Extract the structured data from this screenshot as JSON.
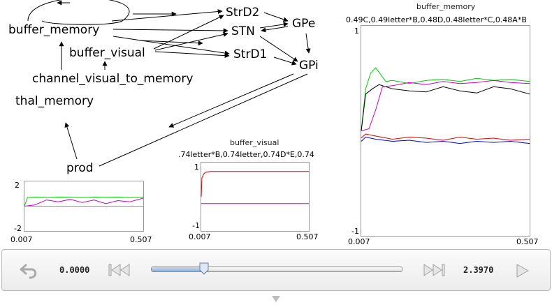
{
  "network": {
    "nodes": [
      {
        "id": "buffer_memory",
        "label": "buffer_memory"
      },
      {
        "id": "buffer_visual",
        "label": "buffer_visual"
      },
      {
        "id": "channel",
        "label": "channel_visual_to_memory"
      },
      {
        "id": "thal_memory",
        "label": "thal_memory"
      },
      {
        "id": "prod",
        "label": "prod"
      },
      {
        "id": "StrD2",
        "label": "StrD2"
      },
      {
        "id": "STN",
        "label": "STN"
      },
      {
        "id": "StrD1",
        "label": "StrD1"
      },
      {
        "id": "GPe",
        "label": "GPe"
      },
      {
        "id": "GPi",
        "label": "GPi"
      }
    ]
  },
  "plots": {
    "small": {
      "y_top": "2",
      "y_bottom": "-2",
      "x_start": "0.007",
      "x_end": "0.507"
    },
    "buffer_visual": {
      "title": "buffer_visual",
      "subtitle": ".74letter*B,0.74letter,0.74D*E,0.74",
      "y_top": "1",
      "y_bottom": "-1",
      "x_start": "0.007",
      "x_end": "0.507"
    },
    "buffer_memory": {
      "title": "buffer_memory",
      "subtitle": "0.49C,0.49letter*B,0.48D,0.48letter*C,0.48A*B",
      "y_top": "1",
      "y_bottom": "-1",
      "x_start": "0.007",
      "x_end": "0.507"
    }
  },
  "chart_data": [
    {
      "type": "line",
      "x_range": [
        0.007,
        0.507
      ],
      "ylim": [
        -2,
        2
      ],
      "series": [
        {
          "color": "#00cc00",
          "x": [
            0.007,
            0.02,
            0.06,
            0.1,
            0.15,
            0.2,
            0.25,
            0.3,
            0.35,
            0.4,
            0.45,
            0.507
          ],
          "y": [
            0.0,
            0.7,
            0.75,
            0.7,
            0.74,
            0.72,
            0.7,
            0.73,
            0.72,
            0.74,
            0.7,
            0.72
          ]
        },
        {
          "color": "#cc00cc",
          "x": [
            0.007,
            0.05,
            0.1,
            0.15,
            0.2,
            0.25,
            0.3,
            0.35,
            0.4,
            0.45,
            0.507
          ],
          "y": [
            0.0,
            0.1,
            0.5,
            0.35,
            0.55,
            0.3,
            0.5,
            0.2,
            0.45,
            0.35,
            0.65
          ]
        },
        {
          "color": "#00cccc",
          "x": [
            0.007,
            0.507
          ],
          "y": [
            0.0,
            0.0
          ]
        }
      ]
    },
    {
      "type": "line",
      "title": "buffer_visual",
      "x_range": [
        0.007,
        0.507
      ],
      "ylim": [
        -1,
        1
      ],
      "series": [
        {
          "color": "#dd0000",
          "x": [
            0.007,
            0.01,
            0.02,
            0.03,
            0.05,
            0.1,
            0.507
          ],
          "y": [
            0.0,
            0.55,
            0.68,
            0.72,
            0.74,
            0.74,
            0.74
          ]
        },
        {
          "color": "#cc00cc",
          "x": [
            0.007,
            0.507
          ],
          "y": [
            -0.2,
            -0.2
          ]
        }
      ]
    },
    {
      "type": "line",
      "title": "buffer_memory",
      "x_range": [
        0.007,
        0.507
      ],
      "ylim": [
        -1,
        1
      ],
      "series": [
        {
          "color": "#00cc00",
          "x": [
            0.007,
            0.02,
            0.035,
            0.05,
            0.08,
            0.1,
            0.15,
            0.2,
            0.25,
            0.3,
            0.35,
            0.4,
            0.45,
            0.507
          ],
          "y": [
            0.0,
            0.4,
            0.55,
            0.6,
            0.47,
            0.48,
            0.45,
            0.48,
            0.49,
            0.47,
            0.5,
            0.48,
            0.49,
            0.47
          ]
        },
        {
          "color": "#000000",
          "x": [
            0.007,
            0.02,
            0.04,
            0.06,
            0.1,
            0.15,
            0.2,
            0.25,
            0.3,
            0.35,
            0.4,
            0.45,
            0.507
          ],
          "y": [
            0.0,
            0.35,
            0.4,
            0.44,
            0.4,
            0.38,
            0.37,
            0.42,
            0.38,
            0.36,
            0.42,
            0.4,
            0.35
          ]
        },
        {
          "color": "#cc00cc",
          "x": [
            0.007,
            0.03,
            0.05,
            0.07,
            0.1,
            0.15,
            0.2,
            0.25,
            0.3,
            0.35,
            0.4,
            0.45,
            0.507
          ],
          "y": [
            0.0,
            0.02,
            0.2,
            0.42,
            0.43,
            0.46,
            0.44,
            0.47,
            0.45,
            0.46,
            0.48,
            0.46,
            0.45
          ]
        },
        {
          "color": "#dd0000",
          "x": [
            0.007,
            0.02,
            0.05,
            0.1,
            0.15,
            0.2,
            0.25,
            0.3,
            0.35,
            0.4,
            0.45,
            0.507
          ],
          "y": [
            -0.07,
            -0.03,
            -0.05,
            -0.08,
            -0.06,
            -0.07,
            -0.09,
            -0.06,
            -0.08,
            -0.07,
            -0.09,
            -0.08
          ]
        },
        {
          "color": "#0000dd",
          "x": [
            0.007,
            0.02,
            0.05,
            0.1,
            0.15,
            0.2,
            0.25,
            0.3,
            0.35,
            0.4,
            0.45,
            0.507
          ],
          "y": [
            -0.1,
            -0.06,
            -0.08,
            -0.1,
            -0.09,
            -0.11,
            -0.1,
            -0.12,
            -0.1,
            -0.11,
            -0.1,
            -0.12
          ]
        }
      ]
    }
  ],
  "playback": {
    "current_time": "0.0000",
    "end_time": "2.3970",
    "position": 0.21
  }
}
